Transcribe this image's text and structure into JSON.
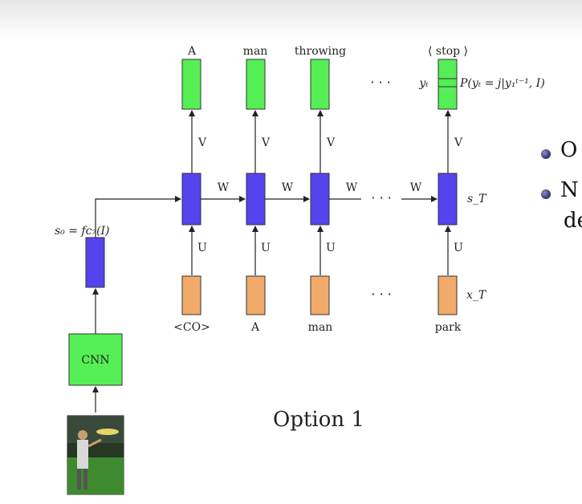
{
  "slide": {
    "bullets": [
      "O",
      "N"
    ],
    "bullet_continuation": "de",
    "caption": "Option 1"
  },
  "diagram": {
    "output_words": [
      "A",
      "man",
      "throwing"
    ],
    "stop_label": "⟨ stop ⟩",
    "input_words": [
      "<CO>",
      "A",
      "man",
      "park"
    ],
    "weight_v": "V",
    "weight_w": "W",
    "weight_u": "U",
    "cnn_label": "CNN",
    "s0_label": "s₀ = fc₇(I)",
    "yt_label": "yₜ",
    "prob_label": "P(yₜ = j|y₁ᵗ⁻¹, I)",
    "sT_label": "s_T",
    "xT_label": "x_T",
    "ellipsis": "· · ·"
  },
  "colors": {
    "output_box": "#55ee55",
    "hidden_box": "#5544ee",
    "input_box": "#f2aa6a",
    "cnn_box": "#55ee55"
  }
}
